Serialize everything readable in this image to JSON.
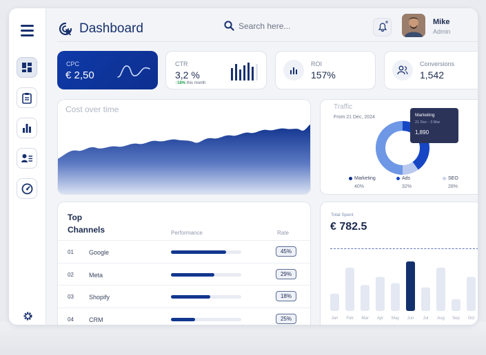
{
  "header": {
    "title": "Dashboard",
    "search_placeholder": "Search here...",
    "user_name": "Mike",
    "user_role": "Admin"
  },
  "sidebar": {
    "items": [
      {
        "icon": "dashboard-grid-icon"
      },
      {
        "icon": "clipboard-icon"
      },
      {
        "icon": "bar-chart-icon"
      },
      {
        "icon": "contact-card-icon"
      },
      {
        "icon": "speedometer-icon"
      }
    ],
    "settings_icon": "gear-icon"
  },
  "kpis": {
    "cpc": {
      "label": "CPC",
      "value": "€ 2,50"
    },
    "ctr": {
      "label": "CTR",
      "value": "3,2 %",
      "change": "18%",
      "change_note": "this month"
    },
    "roi": {
      "label": "ROI",
      "value": "157%"
    },
    "conversions": {
      "label": "Conversions",
      "value": "1,542"
    }
  },
  "cost_over_time": {
    "title": "Cost over time"
  },
  "traffic": {
    "title": "Traffic",
    "from": "From 21 Dec, 2024",
    "tooltip": {
      "label": "Marketing",
      "range": "21 Dec - 3 Mar",
      "value": "1,890"
    },
    "segments": [
      {
        "name": "Marketing",
        "pct": "40%",
        "color": "#1746c4"
      },
      {
        "name": "Ads",
        "pct": "32%",
        "color": "#6e97e6"
      },
      {
        "name": "SEO",
        "pct": "28%",
        "color": "#b8c8ee"
      }
    ]
  },
  "channels": {
    "title": "Top Channels",
    "headers": {
      "performance": "Performance",
      "rate": "Rate"
    },
    "rows": [
      {
        "num": "01",
        "name": "Google",
        "rate": "45%",
        "fill": 0.78
      },
      {
        "num": "02",
        "name": "Meta",
        "rate": "29%",
        "fill": 0.62
      },
      {
        "num": "03",
        "name": "Shopify",
        "rate": "18%",
        "fill": 0.56
      },
      {
        "num": "04",
        "name": "CRM",
        "rate": "25%",
        "fill": 0.34
      }
    ]
  },
  "total_spent": {
    "label": "Total Spent",
    "value": "€ 782.5",
    "months": [
      "Jan",
      "Feb",
      "Mar",
      "Apr",
      "May",
      "Jun",
      "Jul",
      "Aug",
      "Sep",
      "Oct"
    ],
    "values": [
      0.28,
      0.7,
      0.42,
      0.55,
      0.45,
      0.8,
      0.38,
      0.7,
      0.19,
      0.55
    ],
    "highlight_index": 5
  },
  "colors": {
    "primary": "#0f3aa8",
    "navy": "#17306e",
    "bar_light": "#e3e8f3",
    "bar_active": "#12306c"
  }
}
